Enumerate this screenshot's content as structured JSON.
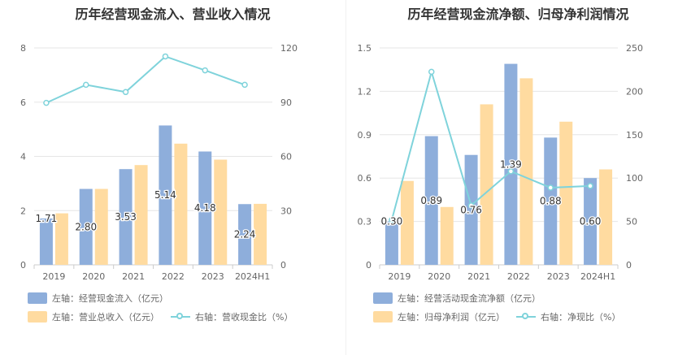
{
  "chart_data": [
    {
      "type": "bar",
      "title": "历年经营现金流入、营业收入情况",
      "categories": [
        "2019",
        "2020",
        "2021",
        "2022",
        "2023",
        "2024H1"
      ],
      "series": [
        {
          "name": "左轴：经营现金流入（亿元）",
          "kind": "bar",
          "axis": "left",
          "color": "#8eaedb",
          "values": [
            1.71,
            2.8,
            3.53,
            5.14,
            4.18,
            2.24
          ],
          "labels": [
            "1.71",
            "2.80",
            "3.53",
            "5.14",
            "4.18",
            "2.24"
          ]
        },
        {
          "name": "左轴：营业总收入（亿元）",
          "kind": "bar",
          "axis": "left",
          "color": "#ffdba0",
          "values": [
            1.9,
            2.8,
            3.68,
            4.47,
            3.88,
            2.25
          ]
        },
        {
          "name": "右轴：营收现金比（%）",
          "kind": "line",
          "axis": "right",
          "color": "#7fd3db",
          "values": [
            89.6,
            99.6,
            95.6,
            115.3,
            107.6,
            99.6
          ]
        }
      ],
      "left_axis": {
        "ylim": [
          0,
          8
        ],
        "ticks": [
          "0",
          "2",
          "4",
          "6",
          "8"
        ]
      },
      "right_axis": {
        "ylim": [
          0,
          120
        ],
        "ticks": [
          "0",
          "30",
          "60",
          "90",
          "120"
        ]
      },
      "grid": true,
      "legend_position": "bottom-left"
    },
    {
      "type": "bar",
      "title": "历年经营现金流净额、归母净利润情况",
      "categories": [
        "2019",
        "2020",
        "2021",
        "2022",
        "2023",
        "2024H1"
      ],
      "series": [
        {
          "name": "左轴：经营活动现金流净额（亿元）",
          "kind": "bar",
          "axis": "left",
          "color": "#8eaedb",
          "values": [
            0.3,
            0.89,
            0.76,
            1.39,
            0.88,
            0.6
          ],
          "labels": [
            "0.30",
            "0.89",
            "0.76",
            "1.39",
            "0.88",
            "0.60"
          ]
        },
        {
          "name": "左轴：归母净利润（亿元）",
          "kind": "bar",
          "axis": "left",
          "color": "#ffdba0",
          "values": [
            0.58,
            0.4,
            1.11,
            1.29,
            0.99,
            0.66
          ]
        },
        {
          "name": "右轴：净现比（%）",
          "kind": "line",
          "axis": "right",
          "color": "#7fd3db",
          "values": [
            51.7,
            222.5,
            68.5,
            107.8,
            88.9,
            90.9
          ]
        }
      ],
      "left_axis": {
        "ylim": [
          0,
          1.5
        ],
        "ticks": [
          "0",
          "0.3",
          "0.6",
          "0.9",
          "1.2",
          "1.5"
        ]
      },
      "right_axis": {
        "ylim": [
          0,
          250
        ],
        "ticks": [
          "0",
          "50",
          "100",
          "150",
          "200",
          "250"
        ]
      },
      "grid": true,
      "legend_position": "bottom-left"
    }
  ]
}
